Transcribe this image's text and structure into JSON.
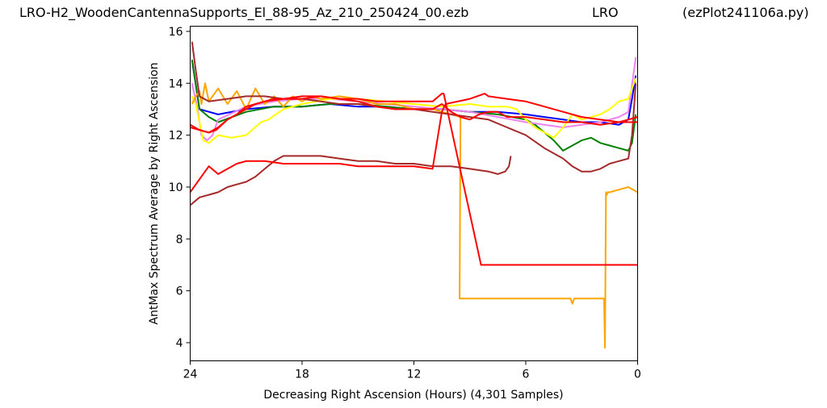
{
  "header": {
    "file_name": "LRO-H2_WoodenCantennaSupports_El_88-95_Az_210_250424_00.ezb",
    "site": "LRO",
    "script": "(ezPlot241106a.py)"
  },
  "chart_data": {
    "type": "line",
    "title": "",
    "xlabel": "Decreasing Right Ascension (Hours) (4,301 Samples)",
    "ylabel": "AntMax Spectrum Average by Right Ascension",
    "xlim": [
      24,
      0
    ],
    "ylim": [
      3.3,
      16.2
    ],
    "x_ticks": [
      "24",
      "18",
      "12",
      "6",
      "0"
    ],
    "y_ticks": [
      "4",
      "6",
      "8",
      "10",
      "12",
      "14",
      "16"
    ],
    "grid": false,
    "legend": "none",
    "series": [
      {
        "color": "#0000ff",
        "x": [
          23.9,
          23.5,
          22.5,
          21,
          19.5,
          18,
          16.5,
          15,
          13.5,
          12,
          10.5,
          9,
          7.5,
          6,
          5,
          4,
          3,
          2,
          1,
          0.5,
          0.3,
          0.1
        ],
        "y": [
          14.9,
          13.0,
          12.8,
          13.0,
          13.1,
          13.1,
          13.2,
          13.1,
          13.1,
          13.0,
          13.0,
          12.9,
          12.9,
          12.8,
          12.7,
          12.6,
          12.5,
          12.5,
          12.4,
          12.6,
          13.4,
          14.3
        ]
      },
      {
        "color": "#008000",
        "x": [
          23.9,
          23.5,
          23,
          22.5,
          21,
          19.5,
          18,
          16.5,
          15,
          13.5,
          12,
          10.5,
          9,
          7.5,
          6,
          5.5,
          5,
          4.5,
          4,
          3.5,
          3,
          2.5,
          2,
          1.5,
          1,
          0.5,
          0.3,
          0.1
        ],
        "y": [
          14.9,
          13.0,
          12.7,
          12.5,
          12.9,
          13.1,
          13.1,
          13.2,
          13.2,
          13.1,
          13.0,
          13.0,
          12.9,
          12.8,
          12.6,
          12.4,
          12.1,
          11.8,
          11.4,
          11.6,
          11.8,
          11.9,
          11.7,
          11.6,
          11.5,
          11.4,
          11.7,
          12.8
        ]
      },
      {
        "color": "#ee82ee",
        "x": [
          23.9,
          23.6,
          23.4,
          23.1,
          22.8,
          22.5,
          21,
          19.5,
          18,
          16.5,
          15,
          13.5,
          12,
          10.5,
          9,
          7.5,
          6,
          5,
          4,
          3,
          2,
          1,
          0.5,
          0.1
        ],
        "y": [
          14.0,
          13.0,
          12.0,
          11.8,
          12.0,
          12.6,
          13.1,
          13.3,
          13.4,
          13.4,
          13.3,
          13.2,
          13.1,
          13.0,
          12.9,
          12.7,
          12.5,
          12.4,
          12.3,
          12.4,
          12.5,
          12.7,
          12.9,
          15.0
        ]
      },
      {
        "color": "#ffff00",
        "x": [
          23.9,
          23.7,
          23.5,
          23.3,
          23,
          22.5,
          21.8,
          21,
          20.2,
          19.8,
          19,
          18,
          16.5,
          15,
          13.5,
          12,
          10.5,
          9,
          8,
          7,
          6.5,
          6,
          5.5,
          5,
          4.5,
          4,
          3.5,
          3,
          2.5,
          2,
          1.5,
          1,
          0.5,
          0.2,
          0.1
        ],
        "y": [
          13.5,
          13.2,
          12.5,
          11.8,
          11.7,
          12.0,
          11.9,
          12.0,
          12.5,
          12.6,
          13.0,
          13.2,
          13.4,
          13.4,
          13.3,
          13.2,
          13.1,
          13.2,
          13.1,
          13.1,
          13.0,
          12.6,
          12.3,
          12.1,
          11.9,
          12.3,
          12.8,
          12.6,
          12.7,
          12.8,
          13.0,
          13.3,
          13.4,
          14.0,
          14.2
        ]
      },
      {
        "color": "#ffa500",
        "x": [
          23.9,
          23.7,
          23.5,
          23.4,
          23.2,
          23,
          22.5,
          22,
          21.5,
          21,
          20.5,
          20,
          19.5,
          19,
          18.5,
          18,
          17.5,
          17,
          16,
          15,
          14,
          13,
          12,
          11,
          10.5,
          10,
          9.5,
          9.55,
          9,
          8.5,
          8,
          7,
          6,
          5,
          4.5,
          4,
          3.6,
          3.5,
          3.4,
          3,
          2.5,
          2,
          1.8,
          1.75,
          1.7,
          1.65,
          1.6,
          1.5,
          1,
          0.5,
          0
        ],
        "y": [
          13.2,
          13.5,
          13.7,
          13.2,
          14.0,
          13.3,
          13.8,
          13.2,
          13.7,
          13.0,
          13.8,
          13.2,
          13.5,
          13.1,
          13.5,
          13.3,
          13.5,
          13.4,
          13.5,
          13.4,
          13.2,
          13.2,
          13.0,
          13.0,
          12.9,
          12.8,
          12.7,
          5.7,
          5.7,
          5.7,
          5.7,
          5.7,
          5.7,
          5.7,
          5.7,
          5.7,
          5.7,
          5.5,
          5.7,
          5.7,
          5.7,
          5.7,
          5.7,
          3.8,
          9.8,
          9.7,
          9.8,
          9.8,
          9.9,
          10.0,
          9.8
        ]
      },
      {
        "color": "#a52a2a",
        "x": [
          23.9,
          23.7,
          23.5,
          23,
          22,
          21,
          20,
          19,
          18,
          17,
          16,
          15,
          14,
          13,
          12,
          11,
          10,
          9,
          8,
          7,
          6,
          5,
          4,
          3.5,
          3,
          2.5,
          2,
          1.5,
          1,
          0.5,
          0.3,
          0.1
        ],
        "y": [
          15.6,
          14.5,
          13.5,
          13.3,
          13.4,
          13.5,
          13.5,
          13.4,
          13.4,
          13.3,
          13.2,
          13.2,
          13.1,
          13.0,
          13.0,
          12.9,
          12.8,
          12.7,
          12.6,
          12.3,
          12.0,
          11.5,
          11.1,
          10.8,
          10.6,
          10.6,
          10.7,
          10.9,
          11.0,
          11.1,
          12.0,
          14.0
        ]
      },
      {
        "color": "#a52a2a",
        "x": [
          24,
          23.5,
          23,
          22.5,
          22,
          21.5,
          21,
          20.5,
          20,
          19.5,
          19,
          18,
          17,
          16,
          15,
          14,
          13,
          12,
          11,
          10,
          9,
          8,
          7.5,
          7.1,
          6.9,
          6.8
        ],
        "y": [
          9.3,
          9.6,
          9.7,
          9.8,
          10.0,
          10.1,
          10.2,
          10.4,
          10.7,
          11.0,
          11.2,
          11.2,
          11.2,
          11.1,
          11.0,
          11.0,
          10.9,
          10.9,
          10.8,
          10.8,
          10.7,
          10.6,
          10.5,
          10.6,
          10.8,
          11.2
        ]
      },
      {
        "color": "#ff0000",
        "x": [
          24,
          23.5,
          23,
          22.6,
          22,
          21.5,
          21,
          20,
          19,
          18,
          17,
          16,
          15,
          14,
          13,
          12,
          11,
          10.5,
          10,
          9.5,
          9,
          8.5,
          8,
          7.5,
          7,
          6,
          5,
          4,
          3,
          2,
          1,
          0.5,
          0
        ],
        "y": [
          12.4,
          12.2,
          12.1,
          12.2,
          12.6,
          12.8,
          13.1,
          13.3,
          13.4,
          13.4,
          13.5,
          13.4,
          13.3,
          13.1,
          13.0,
          13.0,
          13.0,
          13.2,
          12.9,
          12.7,
          12.6,
          12.8,
          12.9,
          12.9,
          12.7,
          12.7,
          12.6,
          12.5,
          12.5,
          12.4,
          12.5,
          12.6,
          12.7
        ]
      },
      {
        "color": "#ff0000",
        "x": [
          24,
          23.5,
          23,
          22.5,
          22,
          21.5,
          21,
          20,
          19,
          18,
          17,
          16,
          15,
          14,
          13,
          12,
          11,
          10.5,
          10.3,
          9,
          8.2,
          8,
          7,
          6,
          5,
          4,
          3,
          2,
          1,
          0.5,
          0
        ],
        "y": [
          9.8,
          10.3,
          10.8,
          10.5,
          10.7,
          10.9,
          11.0,
          11.0,
          10.9,
          10.9,
          10.9,
          10.9,
          10.8,
          10.8,
          10.8,
          10.8,
          10.7,
          12.9,
          13.2,
          13.4,
          13.6,
          13.5,
          13.4,
          13.3,
          13.1,
          12.9,
          12.7,
          12.6,
          12.5,
          12.5,
          12.5
        ]
      },
      {
        "color": "#ff0000",
        "x": [
          24,
          23.5,
          23,
          22.5,
          22,
          21.5,
          21,
          20.5,
          20,
          19.5,
          19,
          18,
          17,
          16,
          15,
          14,
          13,
          12,
          11,
          10.5,
          10.4,
          8.4,
          8,
          7,
          6,
          5,
          4,
          3,
          2,
          1,
          0.5,
          0
        ],
        "y": [
          12.3,
          12.2,
          12.1,
          12.3,
          12.6,
          12.8,
          13.0,
          13.2,
          13.3,
          13.4,
          13.4,
          13.5,
          13.5,
          13.4,
          13.4,
          13.3,
          13.3,
          13.3,
          13.3,
          13.6,
          13.6,
          7.0,
          7.0,
          7.0,
          7.0,
          7.0,
          7.0,
          7.0,
          7.0,
          7.0,
          7.0,
          7.0
        ]
      }
    ]
  }
}
